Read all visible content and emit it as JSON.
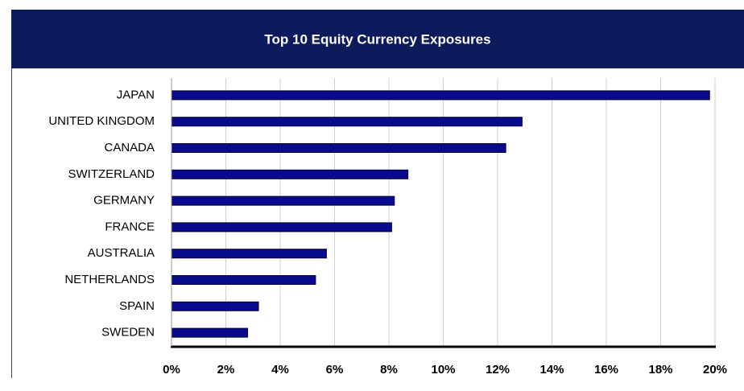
{
  "chart_data": {
    "type": "hbar",
    "title": "Top 10 Equity Currency Exposures",
    "categories": [
      "JAPAN",
      "UNITED KINGDOM",
      "CANADA",
      "SWITZERLAND",
      "GERMANY",
      "FRANCE",
      "AUSTRALIA",
      "NETHERLANDS",
      "SPAIN",
      "SWEDEN"
    ],
    "values": [
      19.8,
      12.9,
      12.3,
      8.7,
      8.2,
      8.1,
      5.7,
      5.3,
      3.2,
      2.8
    ],
    "color": "#0a0a8c",
    "xlim": [
      0,
      20
    ],
    "xticks": [
      {
        "value": 0,
        "label": "0%"
      },
      {
        "value": 2,
        "label": "2%"
      },
      {
        "value": 4,
        "label": "4%"
      },
      {
        "value": 6,
        "label": "6%"
      },
      {
        "value": 8,
        "label": "8%"
      },
      {
        "value": 10,
        "label": "10%"
      },
      {
        "value": 12,
        "label": "12%"
      },
      {
        "value": 14,
        "label": "14%"
      },
      {
        "value": 16,
        "label": "16%"
      },
      {
        "value": 18,
        "label": "18%"
      },
      {
        "value": 20,
        "label": "20%"
      }
    ],
    "grid": true
  }
}
